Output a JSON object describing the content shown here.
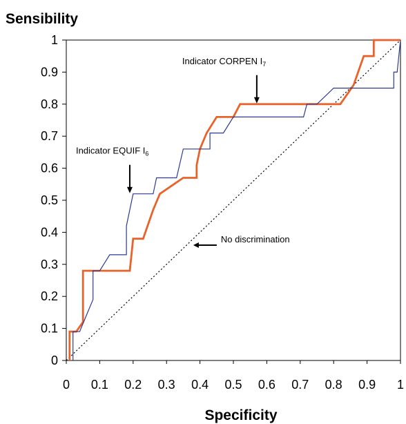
{
  "chart_data": {
    "type": "line",
    "xlabel": "Specificity",
    "ylabel": "Sensibility",
    "xlim": [
      0,
      1
    ],
    "ylim": [
      0,
      1
    ],
    "x_ticks": [
      "0",
      "0.1",
      "0.2",
      "0.3",
      "0.4",
      "0.5",
      "0.6",
      "0.7",
      "0.8",
      "0.9",
      "1"
    ],
    "y_ticks": [
      "0",
      "0.1",
      "0.2",
      "0.3",
      "0.4",
      "0.5",
      "0.6",
      "0.7",
      "0.8",
      "0.9",
      "1"
    ],
    "grid": false,
    "series": [
      {
        "key": "equif",
        "color": "#2b3a8f",
        "points": [
          [
            0.02,
            0
          ],
          [
            0.02,
            0.09
          ],
          [
            0.04,
            0.09
          ],
          [
            0.06,
            0.14
          ],
          [
            0.08,
            0.19
          ],
          [
            0.08,
            0.28
          ],
          [
            0.1,
            0.28
          ],
          [
            0.13,
            0.33
          ],
          [
            0.18,
            0.33
          ],
          [
            0.18,
            0.42
          ],
          [
            0.2,
            0.52
          ],
          [
            0.26,
            0.52
          ],
          [
            0.27,
            0.57
          ],
          [
            0.33,
            0.57
          ],
          [
            0.35,
            0.66
          ],
          [
            0.43,
            0.66
          ],
          [
            0.43,
            0.71
          ],
          [
            0.47,
            0.71
          ],
          [
            0.5,
            0.76
          ],
          [
            0.71,
            0.76
          ],
          [
            0.72,
            0.8
          ],
          [
            0.75,
            0.8
          ],
          [
            0.8,
            0.85
          ],
          [
            0.98,
            0.85
          ],
          [
            0.98,
            0.9
          ],
          [
            0.99,
            0.9
          ],
          [
            1,
            1
          ]
        ]
      },
      {
        "key": "corpen",
        "color": "#e8622a",
        "points": [
          [
            0.01,
            0
          ],
          [
            0.01,
            0.09
          ],
          [
            0.03,
            0.09
          ],
          [
            0.05,
            0.12
          ],
          [
            0.05,
            0.28
          ],
          [
            0.19,
            0.28
          ],
          [
            0.2,
            0.38
          ],
          [
            0.23,
            0.38
          ],
          [
            0.26,
            0.47
          ],
          [
            0.28,
            0.52
          ],
          [
            0.35,
            0.57
          ],
          [
            0.39,
            0.57
          ],
          [
            0.39,
            0.61
          ],
          [
            0.4,
            0.66
          ],
          [
            0.42,
            0.71
          ],
          [
            0.45,
            0.76
          ],
          [
            0.5,
            0.76
          ],
          [
            0.52,
            0.8
          ],
          [
            0.82,
            0.8
          ],
          [
            0.86,
            0.86
          ],
          [
            0.89,
            0.95
          ],
          [
            0.92,
            0.95
          ],
          [
            0.92,
            1
          ],
          [
            1,
            1
          ]
        ]
      },
      {
        "key": "no-discrimination",
        "color": "#000000",
        "dashed": true,
        "points": [
          [
            0,
            0
          ],
          [
            1,
            1
          ]
        ]
      }
    ],
    "annotations": [
      {
        "key": "corpen",
        "text": "Indicator CORPEN I",
        "sub": "7",
        "target": [
          0.57,
          0.8
        ],
        "arrow": "down"
      },
      {
        "key": "equif",
        "text": "Indicator EQUIF I",
        "sub": "6",
        "target": [
          0.19,
          0.52
        ],
        "arrow": "down"
      },
      {
        "key": "nodisc",
        "text": "No discrimination",
        "target": [
          0.38,
          0.36
        ],
        "arrow": "left"
      }
    ]
  }
}
